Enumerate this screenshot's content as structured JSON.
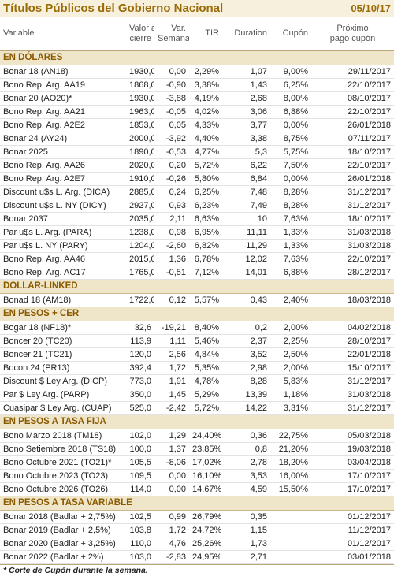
{
  "header": {
    "title": "Títulos Públicos del Gobierno Nacional",
    "date": "05/10/17"
  },
  "columns": [
    [
      "Variable"
    ],
    [
      "Valor al",
      "cierre"
    ],
    [
      "Var.",
      "Semanal"
    ],
    [
      "TIR"
    ],
    [
      "Duration"
    ],
    [
      "Cupón"
    ],
    [
      "Próximo",
      "pago cupón"
    ]
  ],
  "sections": [
    {
      "title": "EN DÓLARES",
      "rows": [
        [
          "Bonar 18 (AN18)",
          "1930,0",
          "0,00",
          "2,29%",
          "1,07",
          "9,00%",
          "29/11/2017"
        ],
        [
          "Bono Rep. Arg. AA19",
          "1868,0",
          "-0,90",
          "3,38%",
          "1,43",
          "6,25%",
          "22/10/2017"
        ],
        [
          "Bonar 20 (AO20)*",
          "1930,0",
          "-3,88",
          "4,19%",
          "2,68",
          "8,00%",
          "08/10/2017"
        ],
        [
          "Bono Rep. Arg. AA21",
          "1963,0",
          "-0,05",
          "4,02%",
          "3,06",
          "6,88%",
          "22/10/2017"
        ],
        [
          "Bono Rep. Arg. A2E2",
          "1853,0",
          "0,05",
          "4,33%",
          "3,77",
          "0,00%",
          "26/01/2018"
        ],
        [
          "Bonar 24 (AY24)",
          "2000,0",
          "-3,92",
          "4,40%",
          "3,38",
          "8,75%",
          "07/11/2017"
        ],
        [
          "Bonar 2025",
          "1890,0",
          "-0,53",
          "4,77%",
          "5,3",
          "5,75%",
          "18/10/2017"
        ],
        [
          "Bono Rep. Arg. AA26",
          "2020,0",
          "0,20",
          "5,72%",
          "6,22",
          "7,50%",
          "22/10/2017"
        ],
        [
          "Bono Rep. Arg. A2E7",
          "1910,0",
          "-0,26",
          "5,80%",
          "6,84",
          "0,00%",
          "26/01/2018"
        ],
        [
          "Discount u$s L. Arg. (DICA)",
          "2885,0",
          "0,24",
          "6,25%",
          "7,48",
          "8,28%",
          "31/12/2017"
        ],
        [
          "Discount u$s L. NY (DICY)",
          "2927,0",
          "0,93",
          "6,23%",
          "7,49",
          "8,28%",
          "31/12/2017"
        ],
        [
          "Bonar 2037",
          "2035,0",
          "2,11",
          "6,63%",
          "10",
          "7,63%",
          "18/10/2017"
        ],
        [
          "Par u$s L. Arg. (PARA)",
          "1238,0",
          "0,98",
          "6,95%",
          "11,11",
          "1,33%",
          "31/03/2018"
        ],
        [
          "Par u$s L. NY (PARY)",
          "1204,0",
          "-2,60",
          "6,82%",
          "11,29",
          "1,33%",
          "31/03/2018"
        ],
        [
          "Bono Rep. Arg. AA46",
          "2015,0",
          "1,36",
          "6,78%",
          "12,02",
          "7,63%",
          "22/10/2017"
        ],
        [
          "Bono Rep. Arg. AC17",
          "1765,0",
          "-0,51",
          "7,12%",
          "14,01",
          "6,88%",
          "28/12/2017"
        ]
      ]
    },
    {
      "title": "DOLLAR-LINKED",
      "rows": [
        [
          "Bonad 18 (AM18)",
          "1722,0",
          "0,12",
          "5,57%",
          "0,43",
          "2,40%",
          "18/03/2018"
        ]
      ]
    },
    {
      "title": "EN PESOS + CER",
      "rows": [
        [
          "Bogar 18 (NF18)*",
          "32,6",
          "-19,21",
          "8,40%",
          "0,2",
          "2,00%",
          "04/02/2018"
        ],
        [
          "Boncer 20 (TC20)",
          "113,9",
          "1,11",
          "5,46%",
          "2,37",
          "2,25%",
          "28/10/2017"
        ],
        [
          "Boncer 21 (TC21)",
          "120,0",
          "2,56",
          "4,84%",
          "3,52",
          "2,50%",
          "22/01/2018"
        ],
        [
          "Bocon 24 (PR13)",
          "392,4",
          "1,72",
          "5,35%",
          "2,98",
          "2,00%",
          "15/10/2017"
        ],
        [
          "Discount $ Ley Arg. (DICP)",
          "773,0",
          "1,91",
          "4,78%",
          "8,28",
          "5,83%",
          "31/12/2017"
        ],
        [
          "Par $ Ley Arg. (PARP)",
          "350,0",
          "1,45",
          "5,29%",
          "13,39",
          "1,18%",
          "31/03/2018"
        ],
        [
          "Cuasipar $ Ley Arg. (CUAP)",
          "525,0",
          "-2,42",
          "5,72%",
          "14,22",
          "3,31%",
          "31/12/2017"
        ]
      ]
    },
    {
      "title": "EN PESOS A TASA FIJA",
      "rows": [
        [
          "Bono Marzo 2018 (TM18)",
          "102,0",
          "1,29",
          "24,40%",
          "0,36",
          "22,75%",
          "05/03/2018"
        ],
        [
          "Bono Setiembre 2018 (TS18)",
          "100,0",
          "1,37",
          "23,85%",
          "0,8",
          "21,20%",
          "19/03/2018"
        ],
        [
          "Bono Octubre 2021 (TO21)*",
          "105,5",
          "-8,06",
          "17,02%",
          "2,78",
          "18,20%",
          "03/04/2018"
        ],
        [
          "Bono Octubre 2023 (TO23)",
          "109,5",
          "0,00",
          "16,10%",
          "3,53",
          "16,00%",
          "17/10/2017"
        ],
        [
          "Bono Octubre 2026 (TO26)",
          "114,0",
          "0,00",
          "14,67%",
          "4,59",
          "15,50%",
          "17/10/2017"
        ]
      ]
    },
    {
      "title": "EN PESOS A TASA VARIABLE",
      "rows": [
        [
          "Bonar 2018 (Badlar + 2,75%)",
          "102,5",
          "0,99",
          "26,79%",
          "0,35",
          null,
          "01/12/2017"
        ],
        [
          "Bonar 2019 (Badlar + 2,5%)",
          "103,8",
          "1,72",
          "24,72%",
          "1,15",
          null,
          "11/12/2017"
        ],
        [
          "Bonar 2020 (Badlar + 3,25%)",
          "110,0",
          "4,76",
          "25,26%",
          "1,73",
          null,
          "01/12/2017"
        ],
        [
          "Bonar 2022 (Badlar + 2%)",
          "103,0",
          "-2,83",
          "24,95%",
          "2,71",
          null,
          "03/01/2018"
        ]
      ]
    }
  ],
  "footnote": "* Corte de Cupón durante la semana."
}
